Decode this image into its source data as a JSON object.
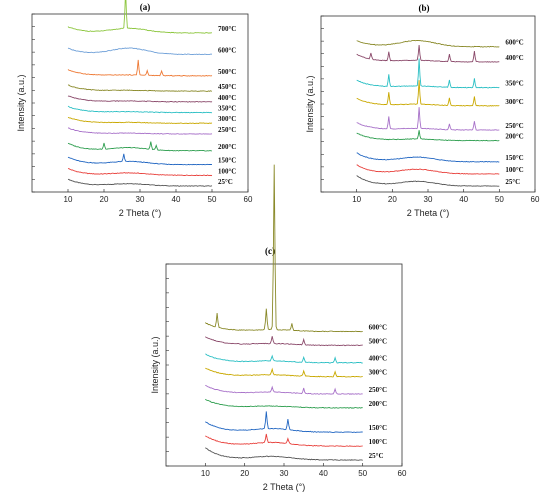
{
  "chart_data": [
    {
      "type": "line",
      "panel_label": "(a)",
      "xlabel": "2 Theta (°)",
      "ylabel": "Intensity (a.u.)",
      "xlim": [
        0,
        60
      ],
      "xticks": [
        10,
        20,
        30,
        40,
        50,
        60
      ],
      "series": [
        {
          "name": "25°C",
          "color": "#555555",
          "offset": 0.0,
          "amp": 0.045,
          "hump": 0.015,
          "spikes": []
        },
        {
          "name": "100°C",
          "color": "#e8413c",
          "offset": 0.07,
          "amp": 0.045,
          "hump": 0.015,
          "spikes": []
        },
        {
          "name": "150°C",
          "color": "#2166c2",
          "offset": 0.14,
          "amp": 0.05,
          "hump": 0.02,
          "spikes": [
            [
              25.5,
              0.05
            ]
          ]
        },
        {
          "name": "200°C",
          "color": "#2e9e4f",
          "offset": 0.23,
          "amp": 0.05,
          "hump": 0.02,
          "spikes": [
            [
              20,
              0.04
            ],
            [
              33,
              0.05
            ],
            [
              34.5,
              0.03
            ]
          ]
        },
        {
          "name": "250°C",
          "color": "#a872c9",
          "offset": 0.34,
          "amp": 0.04,
          "hump": 0.005,
          "spikes": []
        },
        {
          "name": "300°C",
          "color": "#c9a800",
          "offset": 0.41,
          "amp": 0.04,
          "hump": 0.005,
          "spikes": []
        },
        {
          "name": "350°C",
          "color": "#2bbfc4",
          "offset": 0.48,
          "amp": 0.04,
          "hump": 0.005,
          "spikes": []
        },
        {
          "name": "400°C",
          "color": "#8b4a6b",
          "offset": 0.55,
          "amp": 0.04,
          "hump": 0.005,
          "spikes": []
        },
        {
          "name": "450°C",
          "color": "#8a8a2a",
          "offset": 0.62,
          "amp": 0.04,
          "hump": 0.005,
          "spikes": []
        },
        {
          "name": "500°C",
          "color": "#ee7a36",
          "offset": 0.72,
          "amp": 0.04,
          "hump": 0.005,
          "spikes": [
            [
              29.5,
              0.1
            ],
            [
              32,
              0.03
            ],
            [
              36,
              0.03
            ]
          ]
        },
        {
          "name": "600°C",
          "color": "#6fa0d8",
          "offset": 0.86,
          "amp": 0.04,
          "hump": 0.04,
          "spikes": []
        },
        {
          "name": "700°C",
          "color": "#8dc63f",
          "offset": 1.0,
          "amp": 0.04,
          "hump": 0.03,
          "spikes": [
            [
              26,
              0.25
            ]
          ]
        }
      ]
    },
    {
      "type": "line",
      "panel_label": "(b)",
      "xlabel": "2 Theta (°)",
      "ylabel": "Intensity (a.u.)",
      "xlim": [
        0,
        60
      ],
      "xticks": [
        10,
        20,
        30,
        40,
        50,
        60
      ],
      "series": [
        {
          "name": "25°C",
          "color": "#555555",
          "offset": 0.0,
          "amp": 0.07,
          "hump": 0.03,
          "spikes": []
        },
        {
          "name": "100°C",
          "color": "#e8413c",
          "offset": 0.08,
          "amp": 0.06,
          "hump": 0.03,
          "spikes": []
        },
        {
          "name": "150°C",
          "color": "#2166c2",
          "offset": 0.16,
          "amp": 0.06,
          "hump": 0.03,
          "spikes": []
        },
        {
          "name": "200°C",
          "color": "#2e9e4f",
          "offset": 0.3,
          "amp": 0.05,
          "hump": 0.01,
          "spikes": [
            [
              27.5,
              0.06
            ]
          ]
        },
        {
          "name": "250°C",
          "color": "#a872c9",
          "offset": 0.37,
          "amp": 0.05,
          "hump": 0.01,
          "spikes": [
            [
              19,
              0.08
            ],
            [
              27.5,
              0.14
            ],
            [
              36,
              0.04
            ],
            [
              43,
              0.06
            ]
          ]
        },
        {
          "name": "300°C",
          "color": "#c9a800",
          "offset": 0.53,
          "amp": 0.05,
          "hump": 0.01,
          "spikes": [
            [
              19,
              0.08
            ],
            [
              27.5,
              0.16
            ],
            [
              36,
              0.05
            ],
            [
              43,
              0.06
            ]
          ]
        },
        {
          "name": "350°C",
          "color": "#2bbfc4",
          "offset": 0.65,
          "amp": 0.05,
          "hump": 0.01,
          "spikes": [
            [
              19,
              0.08
            ],
            [
              27.5,
              0.18
            ],
            [
              36,
              0.05
            ],
            [
              43,
              0.06
            ]
          ]
        },
        {
          "name": "400°C",
          "color": "#8b4a6b",
          "offset": 0.82,
          "amp": 0.05,
          "hump": 0.01,
          "spikes": [
            [
              14,
              0.04
            ],
            [
              19,
              0.06
            ],
            [
              27.5,
              0.1
            ],
            [
              36,
              0.05
            ],
            [
              43,
              0.07
            ]
          ]
        },
        {
          "name": "600°C",
          "color": "#8a8a2a",
          "offset": 0.92,
          "amp": 0.04,
          "hump": 0.04,
          "spikes": []
        }
      ]
    },
    {
      "type": "line",
      "panel_label": "(c)",
      "xlabel": "2 Theta (°)",
      "ylabel": "Intensity (a.u.)",
      "xlim": [
        0,
        60
      ],
      "xticks": [
        10,
        20,
        30,
        40,
        50,
        60
      ],
      "series": [
        {
          "name": "25°C",
          "color": "#555555",
          "offset": 0.0,
          "amp": 0.07,
          "hump": 0.02,
          "spikes": []
        },
        {
          "name": "100°C",
          "color": "#e8413c",
          "offset": 0.08,
          "amp": 0.06,
          "hump": 0.02,
          "spikes": [
            [
              25.5,
              0.05
            ],
            [
              31,
              0.03
            ]
          ]
        },
        {
          "name": "150°C",
          "color": "#2166c2",
          "offset": 0.16,
          "amp": 0.06,
          "hump": 0.02,
          "spikes": [
            [
              25.5,
              0.1
            ],
            [
              31,
              0.06
            ]
          ]
        },
        {
          "name": "200°C",
          "color": "#2e9e4f",
          "offset": 0.3,
          "amp": 0.05,
          "hump": 0.01,
          "spikes": []
        },
        {
          "name": "250°C",
          "color": "#a872c9",
          "offset": 0.38,
          "amp": 0.05,
          "hump": 0.01,
          "spikes": [
            [
              27,
              0.03
            ],
            [
              35,
              0.03
            ],
            [
              43,
              0.03
            ]
          ]
        },
        {
          "name": "300°C",
          "color": "#c9a800",
          "offset": 0.48,
          "amp": 0.05,
          "hump": 0.01,
          "spikes": [
            [
              27,
              0.03
            ],
            [
              35,
              0.03
            ],
            [
              43,
              0.03
            ]
          ]
        },
        {
          "name": "400°C",
          "color": "#2bbfc4",
          "offset": 0.56,
          "amp": 0.05,
          "hump": 0.01,
          "spikes": [
            [
              27,
              0.03
            ],
            [
              35,
              0.03
            ],
            [
              43,
              0.03
            ]
          ]
        },
        {
          "name": "500°C",
          "color": "#8b4a6b",
          "offset": 0.66,
          "amp": 0.05,
          "hump": 0.01,
          "spikes": [
            [
              27,
              0.04
            ],
            [
              35,
              0.03
            ]
          ]
        },
        {
          "name": "600°C",
          "color": "#8a8a2a",
          "offset": 0.74,
          "amp": 0.05,
          "hump": 0.01,
          "spikes": [
            [
              13,
              0.08
            ],
            [
              25.5,
              0.12
            ],
            [
              27.5,
              0.95
            ],
            [
              32,
              0.04
            ]
          ]
        }
      ]
    }
  ]
}
